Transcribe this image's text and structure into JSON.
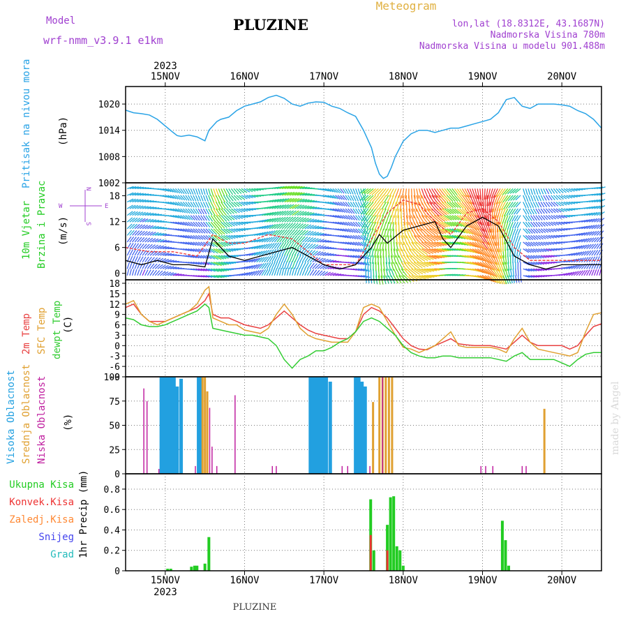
{
  "header": {
    "model_label": "Model",
    "model_name": "wrf-nmm_v3.9.1  e1km",
    "station": "PLUZINE",
    "meteogram": "Meteogram",
    "lonlat": "lon,lat (18.8312E, 43.1687N)",
    "elev": "Nadmorska Visina 780m",
    "elev_model": "Nadmorska Visina u modelu 901.488m",
    "year": "2023",
    "footer": "PLUZINE",
    "credit": "made by Angel"
  },
  "colors": {
    "pressure": "#29a3e6",
    "wind_label": "#22cc22",
    "temp2m": "#e84040",
    "sfc": "#e0a030",
    "dew": "#33cc33",
    "high": "#22a0e0",
    "mid": "#e0a030",
    "low": "#c020a0",
    "snow": "#4444ee",
    "grad": "#22bbbb",
    "purple": "#a040d0",
    "conv": "#ee3333",
    "frz": "#ff8833"
  },
  "x_ticks": [
    "15NOV",
    "16NOV",
    "17NOV",
    "18NOV",
    "19NOV",
    "20NOV"
  ],
  "panels": {
    "pressure": {
      "labels": [
        "Pritisak na nivou mora",
        "(hPa)"
      ],
      "yticks": [
        "1020",
        "1014",
        "1008",
        "1002"
      ]
    },
    "wind": {
      "labels": [
        "10m Vjetar",
        "Brzina i Pravac",
        "(m/s)"
      ],
      "yticks": [
        "18",
        "12",
        "6",
        "0"
      ],
      "compass": {
        "w": "W",
        "e": "E",
        "n": "N",
        "s": "S"
      }
    },
    "temp": {
      "labels": [
        "2m Temp",
        "SFC Temp",
        "dewpt Temp",
        "(C)"
      ],
      "yticks": [
        "18",
        "15",
        "12",
        "9",
        "6",
        "3",
        "0",
        "-3",
        "-6",
        "-9"
      ]
    },
    "cloud": {
      "labels": [
        "Visoka Oblacnost",
        "Srednja Oblacnost",
        "Niska Oblacnost",
        "(%)"
      ],
      "yticks": [
        "100",
        "75",
        "50",
        "25",
        "0"
      ]
    },
    "precip": {
      "labels": [
        "Ukupna Kisa",
        "Konvek.Kisa",
        "Zaledj.Kisa",
        "Snijeg",
        "Grad",
        "1hr Precip (mm)"
      ],
      "yticks": [
        "0.8",
        "0.6",
        "0.4",
        "0.2",
        "0"
      ]
    }
  },
  "chart_data": [
    {
      "type": "line",
      "name": "pressure",
      "ylabel": "(hPa)",
      "ylim": [
        1002,
        1024
      ],
      "xlim": [
        -0.5,
        5.5
      ],
      "series": [
        {
          "name": "Pritisak na nivou mora",
          "x": [
            -0.5,
            -0.4,
            -0.3,
            -0.2,
            -0.1,
            0.0,
            0.1,
            0.15,
            0.2,
            0.3,
            0.4,
            0.5,
            0.55,
            0.6,
            0.65,
            0.7,
            0.8,
            0.9,
            1.0,
            1.1,
            1.2,
            1.3,
            1.4,
            1.5,
            1.6,
            1.7,
            1.8,
            1.9,
            2.0,
            2.1,
            2.2,
            2.3,
            2.4,
            2.5,
            2.6,
            2.65,
            2.7,
            2.75,
            2.8,
            2.85,
            2.9,
            3.0,
            3.1,
            3.2,
            3.3,
            3.4,
            3.5,
            3.6,
            3.7,
            3.8,
            3.9,
            4.0,
            4.1,
            4.2,
            4.3,
            4.4,
            4.5,
            4.6,
            4.7,
            4.8,
            4.9,
            5.0,
            5.1,
            5.2,
            5.3,
            5.4,
            5.5
          ],
          "values": [
            1018.6,
            1018,
            1017.8,
            1017.5,
            1016.5,
            1015,
            1013.5,
            1012.8,
            1012.6,
            1012.9,
            1012.5,
            1011.6,
            1014,
            1015,
            1016,
            1016.5,
            1017,
            1018.5,
            1019.5,
            1020,
            1020.5,
            1021.5,
            1022,
            1021.3,
            1020,
            1019.5,
            1020.2,
            1020.5,
            1020.4,
            1019.5,
            1019,
            1018,
            1017.2,
            1014,
            1010,
            1006.5,
            1004,
            1003,
            1003.5,
            1005.5,
            1008,
            1011.5,
            1013.2,
            1014,
            1014,
            1013.5,
            1014,
            1014.5,
            1014.5,
            1015,
            1015.5,
            1016,
            1016.5,
            1018,
            1021,
            1021.5,
            1019.5,
            1019,
            1020,
            1020,
            1020,
            1019.8,
            1019.5,
            1018.5,
            1017.8,
            1016.5,
            1014.5
          ]
        }
      ]
    },
    {
      "type": "line",
      "name": "wind",
      "ylabel": "(m/s)",
      "ylim": [
        -1.5,
        21
      ],
      "xlim": [
        -0.5,
        5.5
      ],
      "series": [
        {
          "name": "speed",
          "x": [
            -0.5,
            -0.3,
            -0.1,
            0.1,
            0.3,
            0.5,
            0.6,
            0.8,
            1.0,
            1.2,
            1.4,
            1.6,
            1.8,
            2.0,
            2.2,
            2.4,
            2.6,
            2.7,
            2.8,
            3.0,
            3.2,
            3.4,
            3.5,
            3.6,
            3.8,
            4.0,
            4.2,
            4.4,
            4.6,
            4.8,
            5.0,
            5.2,
            5.4,
            5.5
          ],
          "values": [
            3,
            2,
            3,
            2,
            2,
            1.5,
            8,
            4,
            3,
            4,
            5,
            6,
            4,
            2,
            1,
            2,
            6,
            9,
            7,
            10,
            11,
            12,
            8,
            6,
            11,
            13,
            11,
            4,
            2,
            1,
            2,
            2,
            2,
            2
          ]
        },
        {
          "name": "gust",
          "x": [
            -0.5,
            -0.2,
            0.1,
            0.4,
            0.6,
            0.8,
            1.0,
            1.3,
            1.6,
            2.0,
            2.4,
            2.6,
            2.8,
            3.0,
            3.2,
            3.4,
            3.6,
            3.8,
            4.0,
            4.2,
            4.4,
            4.6,
            5.0,
            5.5
          ],
          "values": [
            6,
            5,
            5,
            4,
            9,
            7,
            7,
            9,
            8,
            2,
            2,
            8,
            14,
            17,
            16,
            12,
            9,
            14,
            15,
            12,
            6,
            3,
            3,
            3
          ]
        }
      ]
    },
    {
      "type": "line",
      "name": "temperature",
      "ylabel": "(C)",
      "ylim": [
        -9,
        19
      ],
      "xlim": [
        -0.5,
        5.5
      ],
      "series": [
        {
          "name": "2m Temp",
          "x": [
            -0.5,
            -0.4,
            -0.3,
            -0.2,
            -0.1,
            0.0,
            0.1,
            0.2,
            0.3,
            0.4,
            0.5,
            0.55,
            0.6,
            0.7,
            0.8,
            0.9,
            1.0,
            1.1,
            1.2,
            1.3,
            1.4,
            1.5,
            1.6,
            1.7,
            1.8,
            1.9,
            2.0,
            2.1,
            2.2,
            2.3,
            2.4,
            2.5,
            2.6,
            2.7,
            2.8,
            2.9,
            3.0,
            3.1,
            3.2,
            3.3,
            3.4,
            3.5,
            3.6,
            3.7,
            3.8,
            3.9,
            4.0,
            4.1,
            4.2,
            4.3,
            4.4,
            4.5,
            4.6,
            4.7,
            4.8,
            4.9,
            5.0,
            5.1,
            5.2,
            5.3,
            5.4,
            5.5
          ],
          "values": [
            11,
            12,
            9,
            7,
            7,
            7,
            8,
            9,
            10,
            11,
            13,
            15,
            9,
            8,
            8,
            7,
            6,
            5.5,
            5,
            6,
            8,
            10,
            8,
            6,
            4.5,
            3.5,
            3,
            2.5,
            2,
            2,
            4,
            9,
            11,
            10,
            8,
            5,
            2,
            0,
            -1,
            -1.2,
            0,
            1,
            2,
            0.5,
            0.2,
            0,
            0,
            0,
            -0.5,
            -1,
            1,
            3,
            1,
            0,
            0,
            0,
            0,
            -1,
            0,
            3,
            5.5,
            6.3
          ]
        },
        {
          "name": "SFC Temp",
          "x": [
            -0.5,
            -0.4,
            -0.3,
            -0.2,
            -0.1,
            0.0,
            0.1,
            0.2,
            0.3,
            0.4,
            0.5,
            0.55,
            0.6,
            0.7,
            0.8,
            0.9,
            1.0,
            1.1,
            1.2,
            1.3,
            1.4,
            1.5,
            1.6,
            1.7,
            1.8,
            1.9,
            2.0,
            2.1,
            2.2,
            2.3,
            2.4,
            2.5,
            2.6,
            2.7,
            2.8,
            2.9,
            3.0,
            3.1,
            3.2,
            3.3,
            3.4,
            3.5,
            3.6,
            3.7,
            3.8,
            3.9,
            4.0,
            4.1,
            4.2,
            4.3,
            4.4,
            4.5,
            4.6,
            4.7,
            4.8,
            4.9,
            5.0,
            5.1,
            5.2,
            5.3,
            5.4,
            5.5
          ],
          "values": [
            12,
            13,
            9,
            7,
            6,
            7,
            8,
            9,
            10,
            12,
            16,
            17,
            8,
            7,
            6,
            6,
            4.5,
            4,
            3.5,
            5,
            9,
            12,
            9,
            5,
            3,
            2,
            1.5,
            1,
            1,
            1,
            4,
            11,
            12,
            11,
            7,
            3,
            -0.5,
            -1,
            -2,
            -1,
            0,
            2,
            4,
            0,
            -0.5,
            -0.5,
            -0.5,
            -0.5,
            -1,
            -2,
            2,
            5,
            1,
            -1,
            -1.5,
            -2,
            -2.5,
            -3,
            -2,
            4,
            9,
            9.5
          ]
        },
        {
          "name": "dewpt Temp",
          "x": [
            -0.5,
            -0.4,
            -0.3,
            -0.2,
            -0.1,
            0.0,
            0.1,
            0.2,
            0.3,
            0.4,
            0.5,
            0.55,
            0.6,
            0.7,
            0.8,
            0.9,
            1.0,
            1.1,
            1.2,
            1.3,
            1.4,
            1.5,
            1.6,
            1.7,
            1.8,
            1.9,
            2.0,
            2.1,
            2.2,
            2.3,
            2.4,
            2.5,
            2.6,
            2.7,
            2.8,
            2.9,
            3.0,
            3.1,
            3.2,
            3.3,
            3.4,
            3.5,
            3.6,
            3.7,
            3.8,
            3.9,
            4.0,
            4.1,
            4.2,
            4.3,
            4.4,
            4.5,
            4.6,
            4.7,
            4.8,
            4.9,
            5.0,
            5.1,
            5.2,
            5.3,
            5.4,
            5.5
          ],
          "values": [
            8,
            7.5,
            6,
            5.5,
            5.5,
            6,
            7,
            8,
            9,
            10,
            12,
            11,
            5,
            4.5,
            4,
            3.5,
            3,
            3,
            2.5,
            2,
            0,
            -4,
            -6.5,
            -4,
            -3,
            -1.5,
            -1.5,
            -0.5,
            1,
            2,
            4,
            7,
            8,
            7,
            5,
            3,
            0,
            -2,
            -3,
            -3.5,
            -3.5,
            -3,
            -3,
            -3.5,
            -3.5,
            -3.5,
            -3.5,
            -3.5,
            -4,
            -4.5,
            -3,
            -2,
            -4,
            -4,
            -4,
            -4,
            -5,
            -6,
            -4,
            -2.5,
            -2,
            -2
          ]
        }
      ]
    },
    {
      "type": "bar",
      "name": "cloud cover",
      "ylabel": "(%)",
      "ylim": [
        0,
        100
      ],
      "xlim": [
        -0.5,
        5.5
      ],
      "series": [
        {
          "name": "Visoka Oblacnost",
          "x": [
            -0.05,
            -0.01,
            0.03,
            0.07,
            0.11,
            0.15,
            0.2,
            0.42,
            0.45,
            1.83,
            1.87,
            1.91,
            1.95,
            1.99,
            2.03,
            2.08,
            2.4,
            2.44,
            2.48,
            2.52
          ],
          "values": [
            100,
            100,
            100,
            100,
            100,
            90,
            98,
            100,
            100,
            100,
            100,
            100,
            100,
            100,
            100,
            95,
            100,
            100,
            95,
            90
          ]
        },
        {
          "name": "Srednja Oblacnost",
          "x": [
            0.47,
            0.5,
            0.53,
            2.62,
            2.7,
            2.74,
            2.78,
            2.82,
            2.86,
            4.78
          ],
          "values": [
            100,
            100,
            85,
            74,
            100,
            100,
            100,
            100,
            100,
            67
          ]
        },
        {
          "name": "Niska Oblacnost",
          "x": [
            -0.27,
            -0.23,
            -0.08,
            0.38,
            0.56,
            0.59,
            0.65,
            0.88,
            1.35,
            1.4,
            2.23,
            2.3,
            2.58,
            2.74,
            3.98,
            4.04,
            4.13,
            4.5,
            4.55
          ],
          "values": [
            88,
            75,
            5,
            8,
            68,
            28,
            8,
            81,
            8,
            8,
            8,
            8,
            8,
            100,
            8,
            8,
            8,
            8,
            8
          ]
        }
      ]
    },
    {
      "type": "bar",
      "name": "1hr precipitation",
      "ylabel": "1hr Precip (mm)",
      "ylim": [
        0,
        0.95
      ],
      "xlim": [
        -0.5,
        5.5
      ],
      "series": [
        {
          "name": "Ukupna Kisa",
          "x": [
            0.03,
            0.07,
            0.33,
            0.37,
            0.4,
            0.5,
            0.55,
            2.59,
            2.63,
            2.8,
            2.84,
            2.88,
            2.92,
            2.96,
            3.0,
            4.25,
            4.29,
            4.33
          ],
          "values": [
            0.02,
            0.02,
            0.04,
            0.05,
            0.05,
            0.07,
            0.33,
            0.7,
            0.2,
            0.45,
            0.72,
            0.73,
            0.24,
            0.2,
            0.05,
            0.49,
            0.3,
            0.05
          ]
        },
        {
          "name": "Konvek.Kisa",
          "x": [
            2.59,
            2.8
          ],
          "values": [
            0.35,
            0.2
          ]
        }
      ]
    }
  ]
}
